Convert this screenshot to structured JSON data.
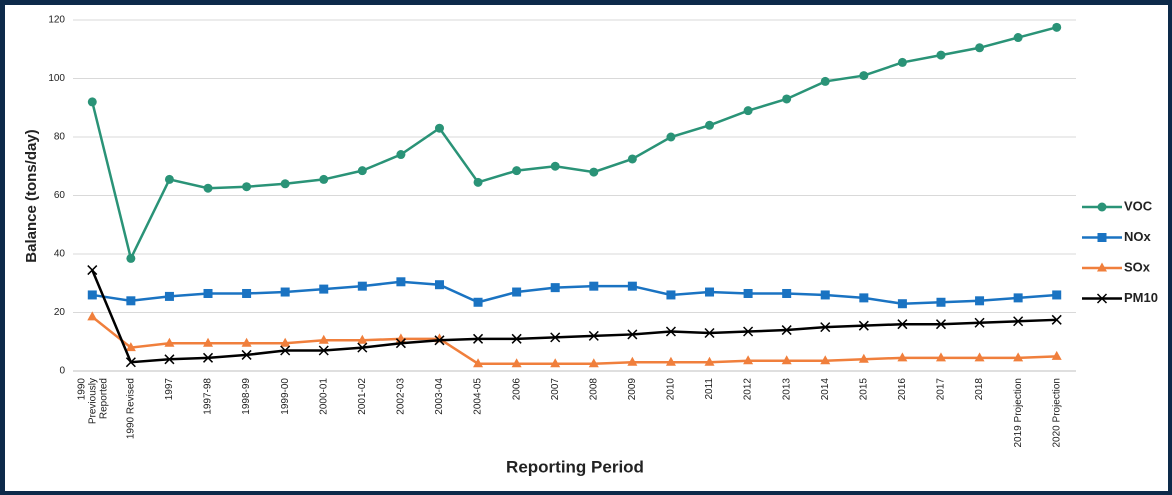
{
  "chart_data": {
    "type": "line",
    "ylabel": "Balance (tons/day)",
    "xlabel": "Reporting Period",
    "categories": [
      "1990 Previously Reported",
      "1990 Revised",
      "1997",
      "1997-98",
      "1998-99",
      "1999-00",
      "2000-01",
      "2001-02",
      "2002-03",
      "2003-04",
      "2004-05",
      "2006",
      "2007",
      "2008",
      "2009",
      "2010",
      "2011",
      "2012",
      "2013",
      "2014",
      "2015",
      "2016",
      "2017",
      "2018",
      "2019 Projection",
      "2020 Projection"
    ],
    "series": [
      {
        "name": "VOC",
        "color": "#2a9377",
        "marker": "circle",
        "values": [
          92,
          38.5,
          65.5,
          62.5,
          63,
          64,
          65.5,
          68.5,
          74,
          83,
          64.5,
          68.5,
          70,
          68,
          72.5,
          80,
          84,
          89,
          93,
          99,
          101,
          105.5,
          108,
          110.5,
          114,
          117.5
        ]
      },
      {
        "name": "NOx",
        "color": "#1a73c2",
        "marker": "square",
        "values": [
          26,
          24,
          25.5,
          26.5,
          26.5,
          27,
          28,
          29,
          30.5,
          29.5,
          23.5,
          27,
          28.5,
          29,
          29,
          26,
          27,
          26.5,
          26.5,
          26,
          25,
          23,
          23.5,
          24,
          25,
          26
        ]
      },
      {
        "name": "SOx",
        "color": "#f07f3c",
        "marker": "triangle",
        "values": [
          18.5,
          8,
          9.5,
          9.5,
          9.5,
          9.5,
          10.5,
          10.5,
          11,
          11,
          2.5,
          2.5,
          2.5,
          2.5,
          3,
          3,
          3,
          3.5,
          3.5,
          3.5,
          4,
          4.5,
          4.5,
          4.5,
          4.5,
          5
        ]
      },
      {
        "name": "PM10",
        "color": "#000000",
        "marker": "x",
        "values": [
          34.5,
          3,
          4,
          4.5,
          5.5,
          7,
          7,
          8,
          9.5,
          10.5,
          11,
          11,
          11.5,
          12,
          12.5,
          13.5,
          13,
          13.5,
          14,
          15,
          15.5,
          16,
          16,
          16.5,
          17,
          17.5
        ]
      }
    ],
    "ylim": [
      0,
      120
    ],
    "yticks": [
      0,
      20,
      40,
      60,
      80,
      100,
      120
    ],
    "grid": true,
    "legend": "right"
  }
}
